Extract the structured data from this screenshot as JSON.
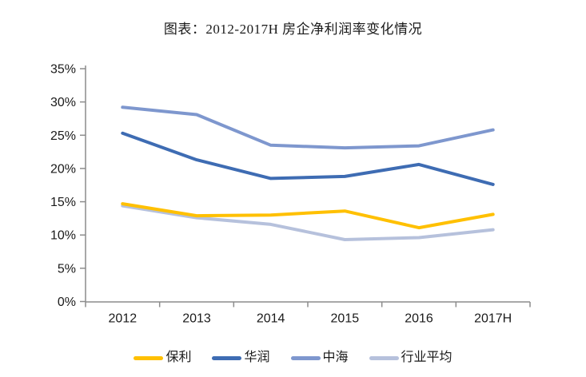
{
  "chart_data": {
    "type": "line",
    "title": "图表：2012-2017H 房企净利润率变化情况",
    "categories": [
      "2012",
      "2013",
      "2014",
      "2015",
      "2016",
      "2017H"
    ],
    "series": [
      {
        "name": "保利",
        "color": "#FFC000",
        "values": [
          14.7,
          12.9,
          13.0,
          13.6,
          11.1,
          13.1
        ]
      },
      {
        "name": "华润",
        "color": "#3E6CB3",
        "values": [
          25.3,
          21.3,
          18.5,
          18.8,
          20.6,
          17.6
        ]
      },
      {
        "name": "中海",
        "color": "#7E97CE",
        "values": [
          29.2,
          28.1,
          23.5,
          23.1,
          23.4,
          25.8
        ]
      },
      {
        "name": "行业平均",
        "color": "#B6C1DC",
        "values": [
          14.4,
          12.6,
          11.6,
          9.3,
          9.6,
          10.8
        ]
      }
    ],
    "y_ticks": [
      "0%",
      "5%",
      "10%",
      "15%",
      "20%",
      "25%",
      "30%",
      "35%"
    ],
    "ylim": [
      0,
      35
    ],
    "xlabel": "",
    "ylabel": "",
    "grid": false,
    "legend_position": "bottom",
    "axis_color": "#8C8C8C",
    "text_color": "#1a1a1a"
  }
}
